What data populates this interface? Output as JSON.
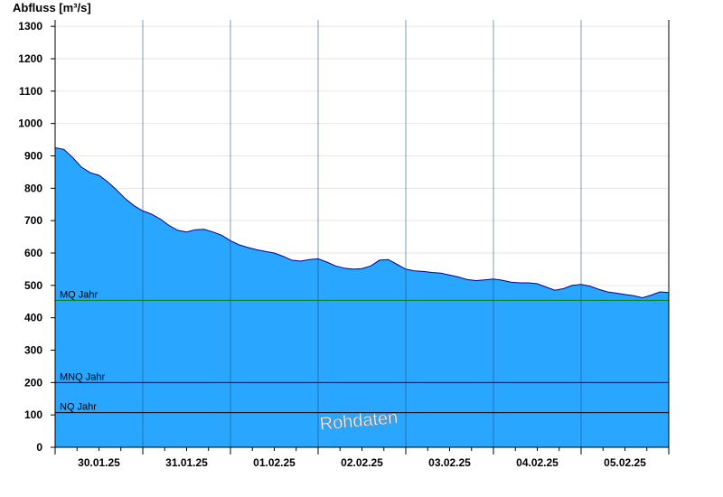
{
  "chart_data": {
    "type": "area",
    "ylabel": "Abfluss [m³/s]",
    "ylim": [
      0,
      1320
    ],
    "yticks": [
      0,
      100,
      200,
      300,
      400,
      500,
      600,
      700,
      800,
      900,
      1000,
      1100,
      1200,
      1300
    ],
    "xlim": [
      0,
      7
    ],
    "xtick_labels": [
      "30.01.25",
      "31.01.25",
      "01.02.25",
      "02.02.25",
      "03.02.25",
      "04.02.25",
      "05.02.25"
    ],
    "grid": true,
    "fill_color": "#29a6ff",
    "line_color": "#000099",
    "reference_lines": [
      {
        "label": "MQ Jahr",
        "value": 454,
        "color": "#008000"
      },
      {
        "label": "MNQ Jahr",
        "value": 200,
        "color": "#000000"
      },
      {
        "label": "NQ Jahr",
        "value": 107,
        "color": "#000000"
      }
    ],
    "series": [
      {
        "x": [
          0.0,
          0.1,
          0.2,
          0.3,
          0.4,
          0.5,
          0.6,
          0.7,
          0.8,
          0.9,
          1.0,
          1.1,
          1.2,
          1.3,
          1.4,
          1.5,
          1.6,
          1.7,
          1.8,
          1.9,
          2.0,
          2.1,
          2.2,
          2.3,
          2.4,
          2.5,
          2.6,
          2.7,
          2.8,
          2.9,
          3.0,
          3.1,
          3.2,
          3.3,
          3.4,
          3.5,
          3.6,
          3.7,
          3.8,
          3.9,
          4.0,
          4.1,
          4.2,
          4.3,
          4.4,
          4.5,
          4.6,
          4.7,
          4.8,
          4.9,
          5.0,
          5.1,
          5.2,
          5.3,
          5.4,
          5.5,
          5.6,
          5.7,
          5.8,
          5.9,
          6.0,
          6.1,
          6.2,
          6.3,
          6.4,
          6.5,
          6.6,
          6.7,
          6.8,
          6.9,
          7.0
        ],
        "values": [
          925,
          920,
          895,
          865,
          848,
          840,
          820,
          795,
          768,
          746,
          730,
          720,
          705,
          685,
          670,
          665,
          672,
          673,
          665,
          655,
          638,
          625,
          617,
          610,
          605,
          600,
          590,
          578,
          575,
          580,
          582,
          572,
          560,
          553,
          550,
          552,
          560,
          578,
          580,
          565,
          550,
          545,
          543,
          540,
          538,
          532,
          526,
          518,
          515,
          517,
          520,
          516,
          510,
          508,
          508,
          505,
          495,
          485,
          490,
          500,
          503,
          498,
          488,
          480,
          476,
          472,
          468,
          462,
          470,
          480,
          478
        ]
      }
    ],
    "watermark": "Rohdaten"
  }
}
